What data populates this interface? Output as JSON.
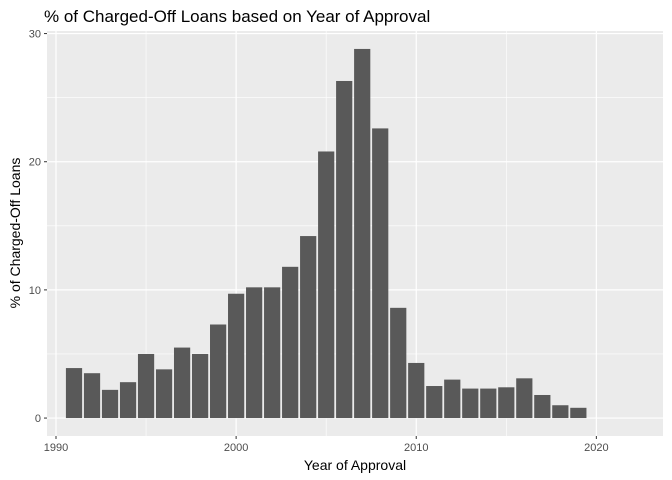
{
  "chart_data": {
    "type": "bar",
    "title": "% of Charged-Off Loans based on Year of Approval",
    "xlabel": "Year of Approval",
    "ylabel": "% of Charged-Off Loans",
    "x": [
      1991,
      1992,
      1993,
      1994,
      1995,
      1996,
      1997,
      1998,
      1999,
      2000,
      2001,
      2002,
      2003,
      2004,
      2005,
      2006,
      2007,
      2008,
      2009,
      2010,
      2011,
      2012,
      2013,
      2014,
      2015,
      2016,
      2017,
      2018,
      2019
    ],
    "values": [
      3.9,
      3.5,
      2.2,
      2.8,
      5.0,
      3.8,
      5.5,
      5.0,
      7.3,
      9.7,
      10.2,
      10.2,
      11.8,
      14.2,
      20.8,
      26.3,
      28.8,
      22.6,
      8.6,
      4.3,
      2.5,
      3.0,
      2.3,
      2.3,
      2.4,
      3.1,
      1.8,
      1.0,
      0.8
    ],
    "xlim": [
      1989.5,
      2023.7
    ],
    "ylim": [
      -1.4,
      30.2
    ],
    "xticks": [
      1990,
      2000,
      2010,
      2020
    ],
    "yticks": [
      0,
      10,
      20,
      30
    ],
    "grid": true,
    "panel_color": "#ebebeb",
    "bar_color": "#595959",
    "grid_color": "#ffffff"
  }
}
